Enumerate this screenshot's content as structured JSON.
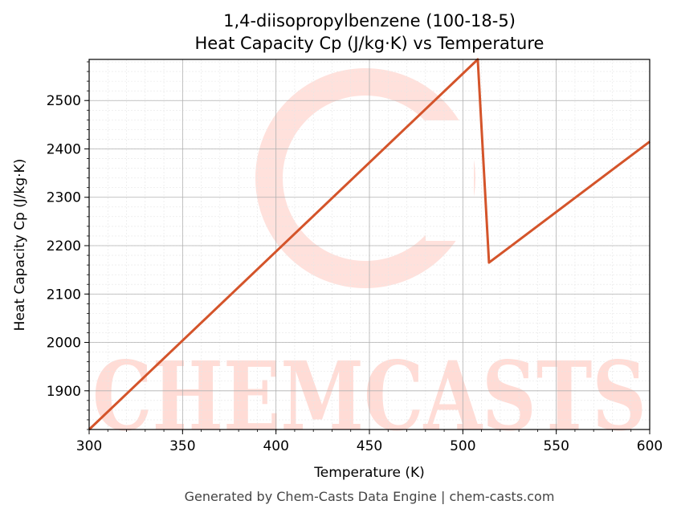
{
  "chart_data": {
    "type": "line",
    "title": "1,4-diisopropylbenzene (100-18-5)",
    "subtitle": "Heat Capacity Cp (J/kg·K) vs Temperature",
    "xlabel": "Temperature (K)",
    "ylabel": "Heat Capacity Cp (J/kg·K)",
    "xlim": [
      300,
      600
    ],
    "ylim": [
      1820,
      2585
    ],
    "xticks": [
      300,
      350,
      400,
      450,
      500,
      550,
      600
    ],
    "yticks": [
      1900,
      2000,
      2100,
      2200,
      2300,
      2400,
      2500
    ],
    "grid": true,
    "series": [
      {
        "color": "#d4542a",
        "x": [
          300,
          508,
          514,
          600
        ],
        "y": [
          1820,
          2585,
          2165,
          2415
        ]
      }
    ]
  },
  "watermark": {
    "text": "CHEMCASTS",
    "color": "#ffdcd6"
  },
  "footer": "Generated by Chem-Casts Data Engine | chem-casts.com"
}
